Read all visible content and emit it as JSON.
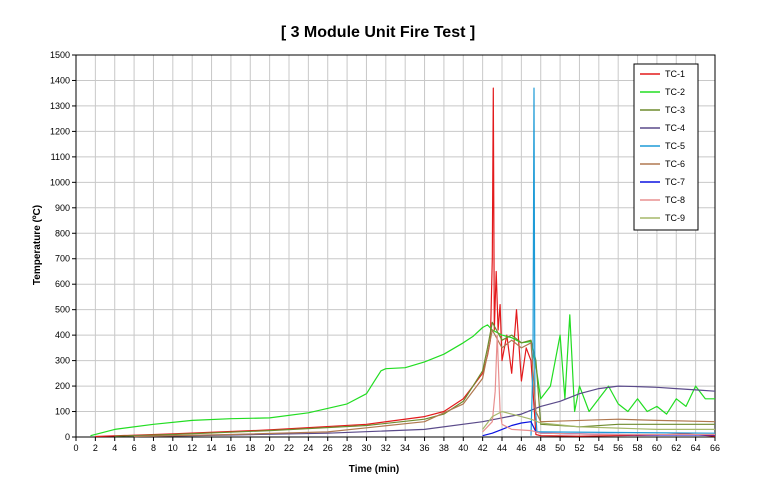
{
  "chart_data": {
    "type": "line",
    "title": "[ 3 Module Unit Fire  Test ]",
    "xlabel": "Time (min)",
    "ylabel": "Temperature (ºC)",
    "xlim": [
      0,
      66
    ],
    "ylim": [
      0,
      1500
    ],
    "xticks": [
      0,
      2,
      4,
      6,
      8,
      10,
      12,
      14,
      16,
      18,
      20,
      22,
      24,
      26,
      28,
      30,
      32,
      34,
      36,
      38,
      40,
      42,
      44,
      46,
      48,
      50,
      52,
      54,
      56,
      58,
      60,
      62,
      64,
      66
    ],
    "yticks": [
      0,
      100,
      200,
      300,
      400,
      500,
      600,
      700,
      800,
      900,
      1000,
      1100,
      1200,
      1300,
      1400,
      1500
    ],
    "grid": true,
    "legend_position": "top-right",
    "series": [
      {
        "name": "TC-1",
        "color": "#e31a1c",
        "points": [
          [
            2,
            2
          ],
          [
            10,
            12
          ],
          [
            20,
            28
          ],
          [
            30,
            50
          ],
          [
            36,
            80
          ],
          [
            38,
            100
          ],
          [
            40,
            150
          ],
          [
            41,
            200
          ],
          [
            42,
            250
          ],
          [
            42.5,
            320
          ],
          [
            42.8,
            380
          ],
          [
            43,
            700
          ],
          [
            43.1,
            1370
          ],
          [
            43.2,
            420
          ],
          [
            43.4,
            650
          ],
          [
            43.6,
            420
          ],
          [
            43.8,
            520
          ],
          [
            44,
            300
          ],
          [
            44.5,
            400
          ],
          [
            45,
            250
          ],
          [
            45.5,
            500
          ],
          [
            46,
            220
          ],
          [
            46.5,
            350
          ],
          [
            47,
            300
          ],
          [
            47.5,
            10
          ],
          [
            48,
            5
          ],
          [
            52,
            3
          ],
          [
            60,
            8
          ],
          [
            63,
            12
          ],
          [
            66,
            3
          ]
        ]
      },
      {
        "name": "TC-2",
        "color": "#22dd22",
        "points": [
          [
            1.5,
            5
          ],
          [
            4,
            30
          ],
          [
            8,
            50
          ],
          [
            12,
            65
          ],
          [
            16,
            72
          ],
          [
            20,
            75
          ],
          [
            24,
            95
          ],
          [
            28,
            130
          ],
          [
            30,
            170
          ],
          [
            31,
            230
          ],
          [
            31.5,
            260
          ],
          [
            32,
            268
          ],
          [
            34,
            272
          ],
          [
            36,
            295
          ],
          [
            38,
            325
          ],
          [
            40,
            370
          ],
          [
            41,
            395
          ],
          [
            42,
            430
          ],
          [
            42.5,
            440
          ],
          [
            43,
            420
          ],
          [
            44,
            400
          ],
          [
            45,
            390
          ],
          [
            46,
            370
          ],
          [
            47,
            375
          ],
          [
            47.5,
            280
          ],
          [
            48,
            150
          ],
          [
            49,
            200
          ],
          [
            50,
            400
          ],
          [
            50.5,
            150
          ],
          [
            51,
            480
          ],
          [
            51.5,
            100
          ],
          [
            52,
            200
          ],
          [
            53,
            100
          ],
          [
            54,
            150
          ],
          [
            55,
            200
          ],
          [
            56,
            130
          ],
          [
            57,
            100
          ],
          [
            58,
            150
          ],
          [
            59,
            100
          ],
          [
            60,
            120
          ],
          [
            61,
            90
          ],
          [
            62,
            150
          ],
          [
            63,
            120
          ],
          [
            64,
            200
          ],
          [
            65,
            150
          ],
          [
            66,
            150
          ]
        ]
      },
      {
        "name": "TC-3",
        "color": "#6e8b2e",
        "points": [
          [
            4,
            3
          ],
          [
            10,
            10
          ],
          [
            20,
            25
          ],
          [
            30,
            45
          ],
          [
            36,
            70
          ],
          [
            38,
            90
          ],
          [
            40,
            140
          ],
          [
            41,
            200
          ],
          [
            42,
            260
          ],
          [
            42.5,
            350
          ],
          [
            43,
            450
          ],
          [
            44,
            380
          ],
          [
            45,
            400
          ],
          [
            46,
            370
          ],
          [
            47,
            380
          ],
          [
            47.5,
            300
          ],
          [
            48,
            50
          ],
          [
            52,
            40
          ],
          [
            56,
            50
          ],
          [
            60,
            50
          ],
          [
            66,
            50
          ]
        ]
      },
      {
        "name": "TC-4",
        "color": "#5a4a8a",
        "points": [
          [
            6,
            2
          ],
          [
            16,
            8
          ],
          [
            26,
            15
          ],
          [
            36,
            30
          ],
          [
            42,
            60
          ],
          [
            46,
            90
          ],
          [
            48,
            120
          ],
          [
            50,
            140
          ],
          [
            52,
            170
          ],
          [
            54,
            190
          ],
          [
            56,
            200
          ],
          [
            58,
            198
          ],
          [
            60,
            195
          ],
          [
            62,
            190
          ],
          [
            64,
            185
          ],
          [
            66,
            180
          ]
        ]
      },
      {
        "name": "TC-5",
        "color": "#1e9bd7",
        "points": [
          [
            47,
            5
          ],
          [
            47.2,
            300
          ],
          [
            47.3,
            1370
          ],
          [
            47.4,
            150
          ],
          [
            47.6,
            20
          ],
          [
            48,
            20
          ],
          [
            66,
            15
          ]
        ]
      },
      {
        "name": "TC-6",
        "color": "#b07850",
        "points": [
          [
            6,
            2
          ],
          [
            16,
            10
          ],
          [
            26,
            20
          ],
          [
            36,
            60
          ],
          [
            40,
            130
          ],
          [
            42,
            230
          ],
          [
            43,
            420
          ],
          [
            44,
            350
          ],
          [
            45,
            380
          ],
          [
            46,
            350
          ],
          [
            47,
            370
          ],
          [
            47.5,
            100
          ],
          [
            48,
            60
          ],
          [
            56,
            70
          ],
          [
            60,
            65
          ],
          [
            66,
            60
          ]
        ]
      },
      {
        "name": "TC-7",
        "color": "#0b12e0",
        "points": [
          [
            42,
            5
          ],
          [
            43,
            15
          ],
          [
            44,
            30
          ],
          [
            45,
            45
          ],
          [
            46,
            55
          ],
          [
            47,
            60
          ],
          [
            47.5,
            20
          ],
          [
            48,
            15
          ],
          [
            52,
            12
          ],
          [
            56,
            10
          ],
          [
            60,
            8
          ],
          [
            66,
            8
          ]
        ]
      },
      {
        "name": "TC-8",
        "color": "#e89090",
        "points": [
          [
            42,
            20
          ],
          [
            43,
            60
          ],
          [
            43.3,
            180
          ],
          [
            43.5,
            400
          ],
          [
            43.8,
            100
          ],
          [
            44,
            50
          ],
          [
            45,
            30
          ],
          [
            47,
            25
          ],
          [
            48,
            15
          ],
          [
            55,
            10
          ],
          [
            60,
            10
          ],
          [
            66,
            10
          ]
        ]
      },
      {
        "name": "TC-9",
        "color": "#a6b86a",
        "points": [
          [
            42,
            30
          ],
          [
            43,
            80
          ],
          [
            44,
            100
          ],
          [
            45,
            90
          ],
          [
            46,
            80
          ],
          [
            47,
            70
          ],
          [
            48,
            55
          ],
          [
            52,
            40
          ],
          [
            56,
            35
          ],
          [
            60,
            30
          ],
          [
            66,
            30
          ]
        ]
      }
    ]
  }
}
